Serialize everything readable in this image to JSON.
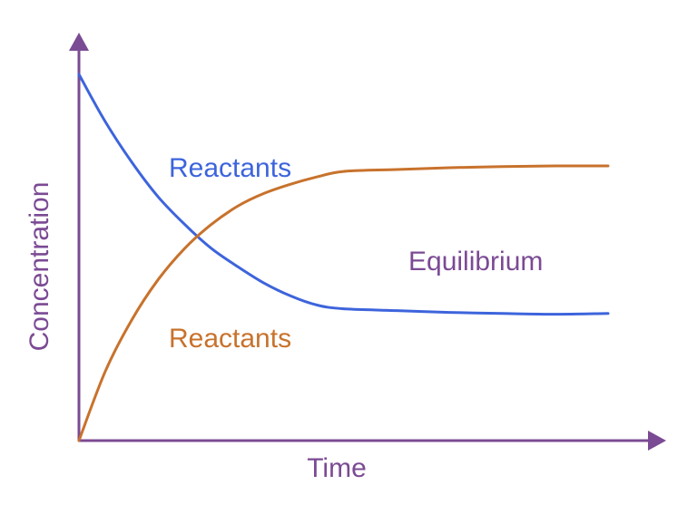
{
  "chart_data": {
    "type": "line",
    "title": "",
    "xlabel": "Time",
    "ylabel": "Concentration",
    "xlim": [
      0,
      10
    ],
    "ylim": [
      0,
      10
    ],
    "grid": false,
    "legend": "none",
    "axis_color": "#7b4a94",
    "series": [
      {
        "name": "Reactants",
        "color": "#3d64dc",
        "x": [
          0,
          0.5,
          1,
          1.5,
          2,
          2.5,
          3,
          3.5,
          4,
          4.5,
          5,
          6,
          7,
          8,
          9,
          10
        ],
        "y": [
          10,
          8.7,
          7.6,
          6.65,
          5.9,
          5.25,
          4.75,
          4.3,
          3.95,
          3.7,
          3.6,
          3.55,
          3.5,
          3.47,
          3.45,
          3.47
        ]
      },
      {
        "name": "Reactants",
        "color": "#c8722c",
        "x": [
          0,
          0.5,
          1,
          1.5,
          2,
          2.5,
          3,
          3.5,
          4,
          4.5,
          5,
          6,
          7,
          8,
          9,
          10
        ],
        "y": [
          0,
          1.9,
          3.3,
          4.4,
          5.25,
          5.9,
          6.4,
          6.75,
          7.0,
          7.2,
          7.35,
          7.4,
          7.45,
          7.48,
          7.5,
          7.5
        ]
      }
    ],
    "annotations": [
      {
        "text": "Equilibrium",
        "color": "#7b4a94"
      }
    ]
  }
}
